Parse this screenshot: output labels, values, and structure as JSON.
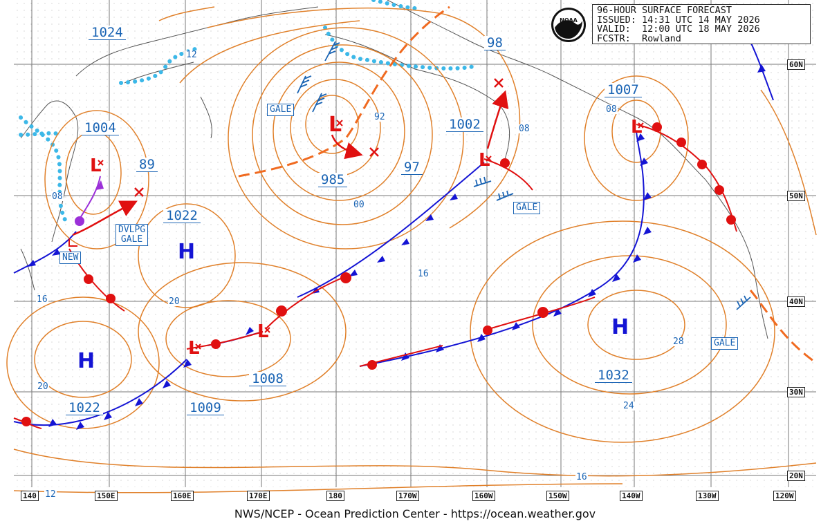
{
  "header": {
    "lines": [
      "96-HOUR SURFACE FORECAST",
      "ISSUED: 14:31 UTC 14 MAY 2026",
      "VALID:  12:00 UTC 18 MAY 2026",
      "FCSTR:  Rowland"
    ]
  },
  "logo": {
    "text": "NOAA"
  },
  "credit": "NWS/NCEP - Ocean Prediction Center - https://ocean.weather.gov",
  "longitude_labels": [
    "140",
    "150E",
    "160E",
    "170E",
    "180",
    "170W",
    "160W",
    "150W",
    "140W",
    "130W",
    "120W"
  ],
  "latitude_labels": [
    "60N",
    "50N",
    "40N",
    "30N",
    "20N"
  ],
  "pressure_labels": [
    "1024",
    "1004",
    "89",
    "1022",
    "985",
    "97",
    "1002",
    "98",
    "1007",
    "1008",
    "1009",
    "1022",
    "1032"
  ],
  "high_marker": "H",
  "low_marker": "L",
  "isobar_labels": [
    "12",
    "08",
    "92",
    "00",
    "16",
    "20",
    "16",
    "08",
    "08",
    "28",
    "24",
    "20",
    "16",
    "12"
  ],
  "boxes": {
    "gale": "GALE",
    "dvlpg_line1": "DVLPG",
    "dvlpg_line2": "GALE",
    "new": "NEW"
  },
  "colors": {
    "isobar": "#e0802a",
    "cold_front": "#1414d4",
    "warm_front": "#e01010",
    "occluded": "#9b30d8",
    "ice": "#3cb8e8",
    "trough": "#f06a20",
    "label": "#1a64b4"
  }
}
